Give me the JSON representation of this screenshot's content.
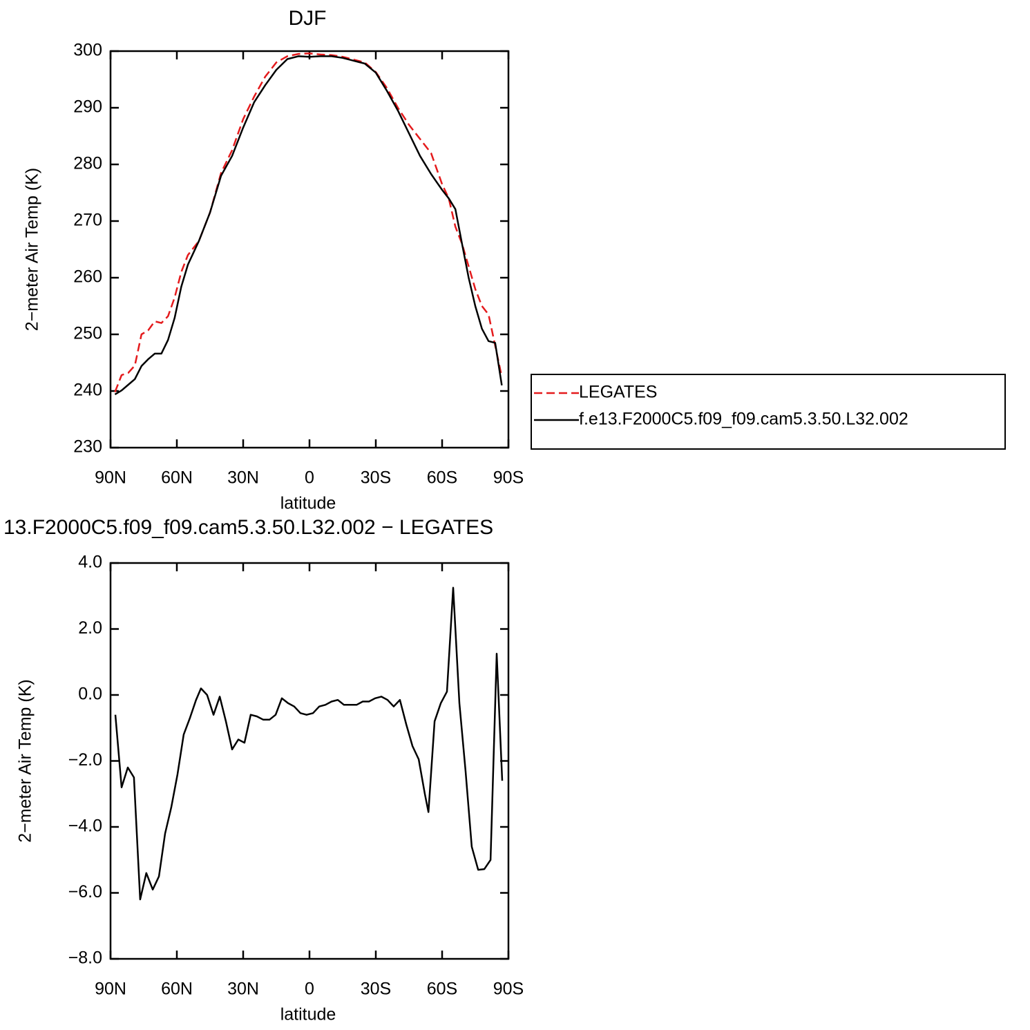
{
  "chart_data": [
    {
      "type": "line",
      "title": "DJF",
      "xlabel": "latitude",
      "ylabel": "2−meter Air Temp (K)",
      "x": [
        88,
        85,
        82,
        79,
        76,
        73,
        70,
        67,
        64,
        61,
        58,
        55,
        50,
        45,
        40,
        35,
        30,
        25,
        20,
        15,
        10,
        5,
        0,
        -5,
        -10,
        -15,
        -20,
        -25,
        -30,
        -35,
        -40,
        -45,
        -50,
        -55,
        -60,
        -63,
        -66,
        -69,
        -72,
        -75,
        -78,
        -81,
        -84,
        -87
      ],
      "series": [
        {
          "name": "LEGATES",
          "color": "#e41a1c",
          "dash": true,
          "values": [
            239.8,
            242.8,
            243.2,
            244.5,
            250,
            250.7,
            252.3,
            252,
            253.2,
            256.5,
            261,
            264,
            266.5,
            271.5,
            278.5,
            282.5,
            288,
            292,
            295.5,
            298,
            299.1,
            299.5,
            299.6,
            299.4,
            299.3,
            299,
            298.5,
            298,
            296.3,
            293.5,
            290,
            287,
            284.5,
            282,
            276.5,
            274,
            269,
            266,
            262,
            258,
            255,
            253.5,
            248,
            242.5
          ]
        },
        {
          "name": "f.e13.F2000C5.f09_f09.cam5.3.50.L32.002",
          "color": "#000000",
          "dash": false,
          "values": [
            239.4,
            240.1,
            241.1,
            242.1,
            244.4,
            245.6,
            246.6,
            246.6,
            249,
            252.9,
            258.4,
            262.3,
            266.5,
            271.5,
            278,
            281.5,
            286.5,
            291,
            294,
            296.7,
            298.6,
            299.1,
            299,
            299.1,
            299.1,
            298.8,
            298.3,
            297.8,
            296.2,
            293,
            289.5,
            285.5,
            281.5,
            278.3,
            275.5,
            274,
            272.1,
            266,
            260,
            255,
            251,
            248.8,
            248.5,
            241
          ]
        }
      ],
      "xlim": [
        90,
        -90
      ],
      "xticks": [
        {
          "value": 90,
          "label": "90N"
        },
        {
          "value": 60,
          "label": "60N"
        },
        {
          "value": 30,
          "label": "30N"
        },
        0,
        {
          "value": -30,
          "label": "30S"
        },
        {
          "value": -60,
          "label": "60S"
        },
        {
          "value": -90,
          "label": "90S"
        }
      ],
      "ylim": [
        230,
        300
      ],
      "yticks": [
        230,
        240,
        250,
        260,
        270,
        280,
        290,
        300
      ],
      "legend": "right"
    },
    {
      "type": "line",
      "title": "13.F2000C5.f09_f09.cam5.3.50.L32.002 − LEGATES",
      "xlabel": "latitude",
      "ylabel": "2−meter Air Temp (K)",
      "x": [
        87.8,
        85,
        82.2,
        79.4,
        76.6,
        73.8,
        70.9,
        68.1,
        65.3,
        62.5,
        59.7,
        56.9,
        54.1,
        51.3,
        49.1,
        46.3,
        43.4,
        40.6,
        37.8,
        35,
        32.2,
        29.4,
        26.6,
        23.8,
        20.9,
        18.1,
        15.3,
        12.5,
        9.7,
        6.9,
        4.1,
        1.3,
        -1.6,
        -4.4,
        -7.2,
        -10,
        -12.8,
        -15.6,
        -18.4,
        -21.3,
        -24.1,
        -26.9,
        -29.7,
        -32.5,
        -35.3,
        -38.1,
        -40.9,
        -43.8,
        -46.6,
        -49.4,
        -52.2,
        -53.8,
        -56.6,
        -59.4,
        -62.2,
        -65,
        -67.8,
        -70.6,
        -73.4,
        -76.3,
        -79.1,
        -81.9,
        -84.7,
        -87.2
      ],
      "series": [
        {
          "color": "#000000",
          "dash": false,
          "values": [
            -0.6,
            -2.8,
            -2.2,
            -2.5,
            -6.2,
            -5.4,
            -5.9,
            -5.5,
            -4.2,
            -3.4,
            -2.4,
            -1.2,
            -0.7,
            -0.15,
            0.2,
            0,
            -0.6,
            -0.05,
            -0.8,
            -1.65,
            -1.35,
            -1.45,
            -0.6,
            -0.65,
            -0.75,
            -0.75,
            -0.6,
            -0.1,
            -0.25,
            -0.35,
            -0.55,
            -0.6,
            -0.55,
            -0.35,
            -0.3,
            -0.2,
            -0.15,
            -0.3,
            -0.3,
            -0.3,
            -0.2,
            -0.2,
            -0.1,
            -0.05,
            -0.15,
            -0.35,
            -0.15,
            -0.9,
            -1.55,
            -1.95,
            -3,
            -3.55,
            -0.8,
            -0.25,
            0.1,
            3.25,
            -0.25,
            -2.3,
            -4.6,
            -5.3,
            -5.28,
            -5,
            1.25,
            -2.6
          ]
        }
      ],
      "xlim": [
        90,
        -90
      ],
      "xticks": [
        {
          "value": 90,
          "label": "90N"
        },
        {
          "value": 60,
          "label": "60N"
        },
        {
          "value": 30,
          "label": "30N"
        },
        0,
        {
          "value": -30,
          "label": "30S"
        },
        {
          "value": -60,
          "label": "60S"
        },
        {
          "value": -90,
          "label": "90S"
        }
      ],
      "ylim": [
        -8,
        4
      ],
      "yticks": [
        {
          "value": -8,
          "label": "−8.0"
        },
        {
          "value": -6,
          "label": "−6.0"
        },
        {
          "value": -4,
          "label": "−4.0"
        },
        {
          "value": -2,
          "label": "−2.0"
        },
        {
          "value": 0,
          "label": "0.0"
        },
        {
          "value": 2,
          "label": "2.0"
        },
        {
          "value": 4,
          "label": "4.0"
        }
      ]
    }
  ]
}
